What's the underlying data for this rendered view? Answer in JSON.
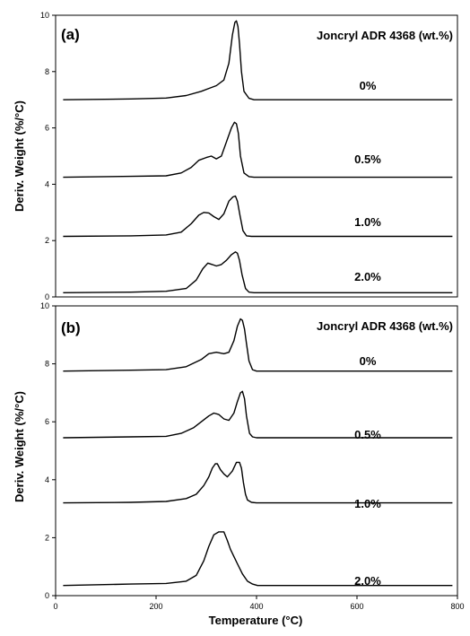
{
  "chart_data": [
    {
      "type": "line",
      "panel_label": "(a)",
      "legend_title": "Joncryl ADR 4368 (wt.%)",
      "xlim": [
        0,
        800
      ],
      "ylim": [
        0,
        10
      ],
      "x_ticks": [],
      "y_ticks": [
        0,
        2,
        4,
        6,
        8,
        10
      ],
      "ylabel": "Deriv. Weight (%/°C)",
      "series": [
        {
          "name": "0%",
          "baseline": 7.0,
          "x": [
            15,
            150,
            220,
            260,
            290,
            305,
            320,
            335,
            345,
            352,
            357,
            360,
            363,
            366,
            370,
            375,
            385,
            395,
            420,
            500,
            600,
            700,
            790
          ],
          "y": [
            7.0,
            7.03,
            7.06,
            7.15,
            7.3,
            7.4,
            7.5,
            7.7,
            8.3,
            9.3,
            9.75,
            9.8,
            9.6,
            9.0,
            8.0,
            7.3,
            7.05,
            7.0,
            7.0,
            7.0,
            7.0,
            7.0,
            7.0
          ]
        },
        {
          "name": "0.5%",
          "baseline": 4.25,
          "x": [
            15,
            150,
            220,
            250,
            270,
            285,
            300,
            310,
            320,
            330,
            340,
            350,
            356,
            360,
            364,
            368,
            375,
            385,
            395,
            420,
            500,
            600,
            700,
            790
          ],
          "y": [
            4.25,
            4.28,
            4.3,
            4.4,
            4.6,
            4.85,
            4.95,
            5.0,
            4.9,
            5.0,
            5.5,
            6.0,
            6.2,
            6.15,
            5.8,
            5.0,
            4.4,
            4.27,
            4.25,
            4.25,
            4.25,
            4.25,
            4.25,
            4.25
          ]
        },
        {
          "name": "1.0%",
          "baseline": 2.15,
          "x": [
            15,
            150,
            220,
            250,
            270,
            285,
            295,
            305,
            315,
            325,
            335,
            345,
            353,
            358,
            362,
            367,
            373,
            380,
            390,
            420,
            500,
            600,
            700,
            790
          ],
          "y": [
            2.15,
            2.17,
            2.2,
            2.3,
            2.6,
            2.9,
            3.0,
            2.98,
            2.85,
            2.75,
            2.95,
            3.4,
            3.55,
            3.58,
            3.4,
            2.9,
            2.35,
            2.17,
            2.15,
            2.15,
            2.15,
            2.15,
            2.15,
            2.15
          ]
        },
        {
          "name": "2.0%",
          "baseline": 0.15,
          "x": [
            15,
            150,
            220,
            260,
            280,
            293,
            303,
            312,
            320,
            330,
            340,
            350,
            358,
            362,
            366,
            371,
            378,
            385,
            395,
            420,
            500,
            600,
            700,
            790
          ],
          "y": [
            0.15,
            0.17,
            0.2,
            0.3,
            0.6,
            1.0,
            1.2,
            1.15,
            1.1,
            1.15,
            1.3,
            1.5,
            1.6,
            1.55,
            1.3,
            0.8,
            0.3,
            0.17,
            0.15,
            0.15,
            0.15,
            0.15,
            0.15,
            0.15
          ]
        }
      ]
    },
    {
      "type": "line",
      "panel_label": "(b)",
      "legend_title": "Joncryl ADR 4368 (wt.%)",
      "xlim": [
        0,
        800
      ],
      "ylim": [
        0,
        10
      ],
      "x_ticks": [
        0,
        200,
        400,
        600,
        800
      ],
      "y_ticks": [
        0,
        2,
        4,
        6,
        8,
        10
      ],
      "xlabel": "Temperature (°C)",
      "ylabel": "Deriv. Weight (%/°C)",
      "series": [
        {
          "name": "0%",
          "baseline": 7.75,
          "x": [
            15,
            150,
            220,
            260,
            290,
            305,
            320,
            335,
            345,
            355,
            362,
            368,
            372,
            376,
            380,
            385,
            392,
            400,
            420,
            500,
            600,
            700,
            790
          ],
          "y": [
            7.75,
            7.78,
            7.8,
            7.9,
            8.15,
            8.35,
            8.4,
            8.35,
            8.4,
            8.8,
            9.3,
            9.55,
            9.5,
            9.2,
            8.7,
            8.1,
            7.8,
            7.75,
            7.75,
            7.75,
            7.75,
            7.75,
            7.75
          ]
        },
        {
          "name": "0.5%",
          "baseline": 5.45,
          "x": [
            15,
            150,
            220,
            250,
            275,
            290,
            305,
            315,
            325,
            335,
            345,
            355,
            362,
            368,
            372,
            376,
            380,
            386,
            392,
            400,
            420,
            500,
            600,
            700,
            790
          ],
          "y": [
            5.45,
            5.48,
            5.5,
            5.6,
            5.8,
            6.0,
            6.2,
            6.3,
            6.25,
            6.1,
            6.05,
            6.3,
            6.7,
            7.0,
            7.05,
            6.8,
            6.2,
            5.6,
            5.48,
            5.45,
            5.45,
            5.45,
            5.45,
            5.45,
            5.45
          ]
        },
        {
          "name": "1.0%",
          "baseline": 3.2,
          "x": [
            15,
            150,
            220,
            260,
            280,
            295,
            305,
            312,
            318,
            322,
            328,
            335,
            342,
            352,
            360,
            366,
            370,
            374,
            378,
            382,
            390,
            400,
            420,
            500,
            600,
            700,
            790
          ],
          "y": [
            3.2,
            3.22,
            3.25,
            3.35,
            3.5,
            3.8,
            4.1,
            4.4,
            4.55,
            4.55,
            4.35,
            4.2,
            4.1,
            4.3,
            4.6,
            4.6,
            4.4,
            3.9,
            3.5,
            3.3,
            3.22,
            3.2,
            3.2,
            3.2,
            3.2,
            3.2,
            3.2
          ]
        },
        {
          "name": "2.0%",
          "baseline": 0.35,
          "x": [
            15,
            150,
            220,
            260,
            280,
            295,
            305,
            315,
            325,
            335,
            342,
            348,
            355,
            362,
            372,
            382,
            392,
            402,
            420,
            500,
            600,
            700,
            790
          ],
          "y": [
            0.35,
            0.4,
            0.42,
            0.5,
            0.7,
            1.2,
            1.7,
            2.1,
            2.2,
            2.2,
            1.9,
            1.6,
            1.35,
            1.1,
            0.75,
            0.5,
            0.4,
            0.35,
            0.35,
            0.35,
            0.35,
            0.35,
            0.35
          ]
        }
      ]
    }
  ]
}
